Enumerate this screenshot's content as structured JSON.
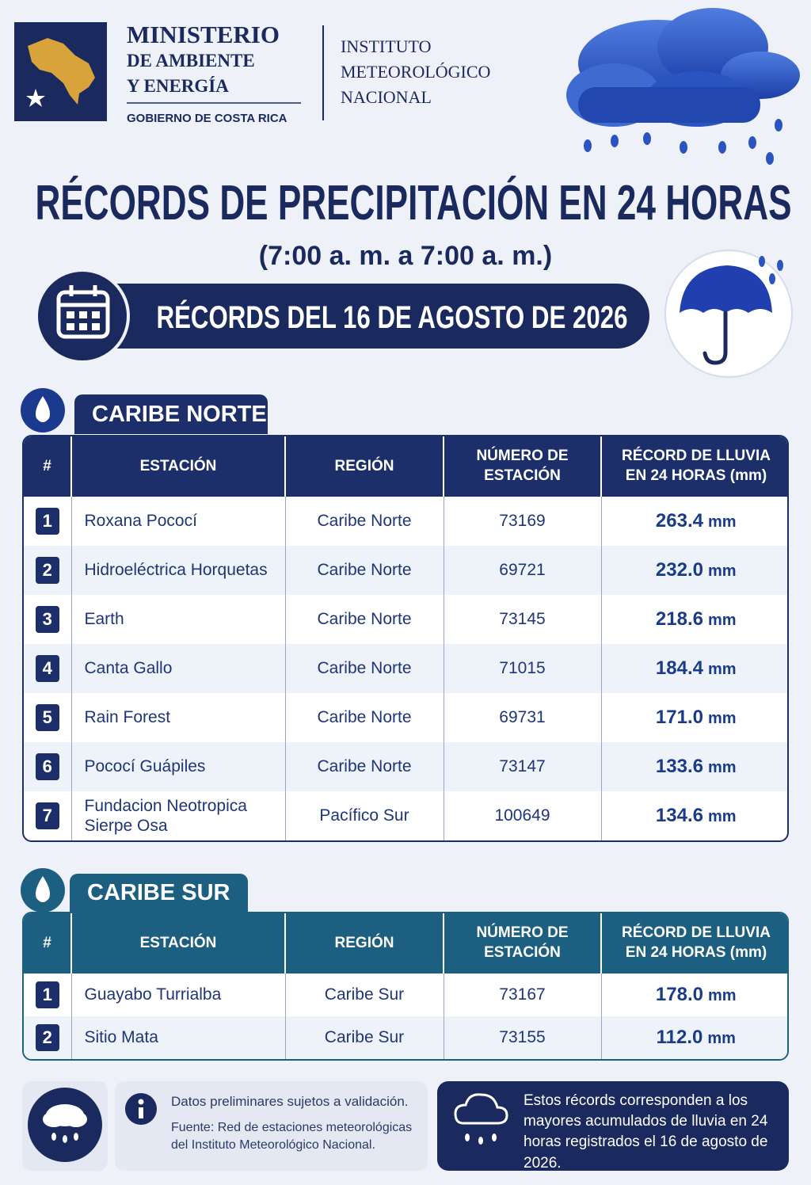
{
  "header": {
    "ministry": "MINISTERIO",
    "ministry_sub": [
      "DE AMBIENTE",
      "Y ENERGÍA"
    ],
    "government": "GOBIERNO DE COSTA RICA",
    "institute": [
      "INSTITUTO",
      "METEOROLÓGICO",
      "NACIONAL"
    ]
  },
  "title": "RÉCORDS DE PRECIPITACIÓN EN 24 HORAS",
  "subtitle": "(7:00 a. m. a 7:00 a. m.)",
  "date_banner": "RÉCORDS DEL 16 DE AGOSTO DE 2026",
  "sections": [
    {
      "name": "CARIBE NORTE",
      "columns": [
        "#",
        "ESTACIÓN",
        "REGIÓN",
        "NÚMERO DE ESTACIÓN",
        "RÉCORD DE LLUVIA EN 24 HORAS (mm)"
      ],
      "rows": [
        [
          "1",
          "Roxana Pococí",
          "Caribe Norte",
          "73169",
          "263.4",
          "mm"
        ],
        [
          "2",
          "Hidroeléctrica Horquetas",
          "Caribe Norte",
          "69721",
          "232.0",
          "mm"
        ],
        [
          "3",
          "Earth",
          "Caribe Norte",
          "73145",
          "218.6",
          "mm"
        ],
        [
          "4",
          "Canta Gallo",
          "Caribe Norte",
          "71015",
          "184.4",
          "mm"
        ],
        [
          "5",
          "Rain Forest",
          "Caribe Norte",
          "69731",
          "171.0",
          "mm"
        ],
        [
          "6",
          "Pococí Guápiles",
          "Caribe Norte",
          "73147",
          "133.6",
          "mm"
        ],
        [
          "7",
          "Fundacion Neotropica Sierpe Osa",
          "Pacífico Sur",
          "100649",
          "134.6",
          "mm"
        ]
      ]
    },
    {
      "name": "CARIBE SUR",
      "columns": [
        "#",
        "ESTACIÓN",
        "REGIÓN",
        "NÚMERO DE ESTACIÓN",
        "RÉCORD DE LLUVIA EN 24 HORAS (mm)"
      ],
      "rows": [
        [
          "1",
          "Guayabo Turrialba",
          "Caribe Sur",
          "73167",
          "178.0",
          "mm"
        ],
        [
          "2",
          "Sitio Mata",
          "Caribe Sur",
          "73155",
          "112.0",
          "mm"
        ]
      ]
    }
  ],
  "footer": {
    "note": "Datos preliminares sujetos a validación.",
    "source": "Fuente: Red de estaciones meteorológicas del Instituto Meteorológico Nacional.",
    "summary": "Estos récords corresponden a los mayores acumulados de lluvia en 24 horas registrados el 16 de agosto de 2026."
  }
}
